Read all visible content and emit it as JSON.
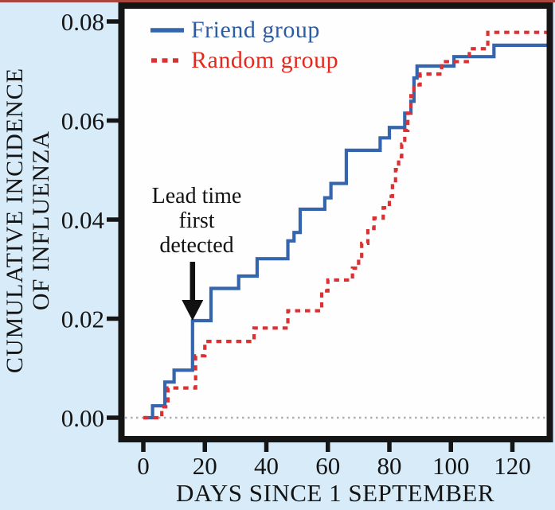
{
  "figure": {
    "background_color": "#d7ecf8",
    "plot_background_color": "#fffefe",
    "border_color": "#151515",
    "top_strip_color": "#a8453c",
    "zero_line_color": "#a9b0b7",
    "text_color": "#141414",
    "arrow_color": "#111111"
  },
  "chart_data": {
    "type": "line",
    "line_style": "step-after",
    "title": "",
    "xlabel": "DAYS SINCE 1 SEPTEMBER",
    "ylabel_lines": [
      "CUMULATIVE INCIDENCE",
      "OF INFLUENZA"
    ],
    "xlim": [
      -7,
      131
    ],
    "ylim": [
      0,
      0.083
    ],
    "grid": false,
    "zero_reference_line": 0,
    "legend_position": "top-left-inside",
    "xticks": [
      0,
      20,
      40,
      60,
      80,
      100,
      120
    ],
    "xtick_labels": [
      "0",
      "20",
      "40",
      "60",
      "80",
      "100",
      "120"
    ],
    "yticks": [
      0,
      0.02,
      0.04,
      0.06,
      0.08
    ],
    "ytick_labels": [
      "0.00",
      "0.02",
      "0.04",
      "0.06",
      "0.08"
    ],
    "series": [
      {
        "name": "Friend group",
        "color": "#3566ad",
        "label_color": "#2d5ca6",
        "dash": "solid",
        "points": [
          [
            0,
            0
          ],
          [
            3,
            0.0024
          ],
          [
            7,
            0.0072
          ],
          [
            10,
            0.0096
          ],
          [
            16,
            0.0196
          ],
          [
            22,
            0.0261
          ],
          [
            31,
            0.0286
          ],
          [
            37,
            0.0321
          ],
          [
            47,
            0.0357
          ],
          [
            49,
            0.0374
          ],
          [
            51,
            0.0421
          ],
          [
            59,
            0.0444
          ],
          [
            61,
            0.0473
          ],
          [
            66,
            0.054
          ],
          [
            77,
            0.0565
          ],
          [
            80,
            0.0586
          ],
          [
            85,
            0.0615
          ],
          [
            87,
            0.0639
          ],
          [
            88,
            0.0686
          ],
          [
            89,
            0.071
          ],
          [
            101,
            0.0729
          ],
          [
            114,
            0.0752
          ]
        ]
      },
      {
        "name": "Random group",
        "color": "#da3134",
        "label_color": "#e6271c",
        "dash": "dashed",
        "points": [
          [
            0,
            0
          ],
          [
            6,
            0.0022
          ],
          [
            8,
            0.006
          ],
          [
            17,
            0.0125
          ],
          [
            20,
            0.0154
          ],
          [
            36,
            0.0181
          ],
          [
            47,
            0.0216
          ],
          [
            58,
            0.0256
          ],
          [
            60,
            0.0278
          ],
          [
            68,
            0.0302
          ],
          [
            70,
            0.0321
          ],
          [
            71,
            0.0352
          ],
          [
            73,
            0.0382
          ],
          [
            75,
            0.0403
          ],
          [
            78,
            0.0424
          ],
          [
            80,
            0.0447
          ],
          [
            81,
            0.0475
          ],
          [
            82,
            0.0501
          ],
          [
            83,
            0.0527
          ],
          [
            84,
            0.0552
          ],
          [
            85,
            0.058
          ],
          [
            86,
            0.0615
          ],
          [
            87,
            0.065
          ],
          [
            88,
            0.0672
          ],
          [
            90,
            0.0694
          ],
          [
            97,
            0.0719
          ],
          [
            106,
            0.0745
          ],
          [
            112,
            0.0778
          ]
        ]
      }
    ],
    "annotation": {
      "lines": [
        "Lead time",
        "first",
        "detected"
      ],
      "arrow_day": 16,
      "arrow_points_to_value": 0.02
    }
  }
}
